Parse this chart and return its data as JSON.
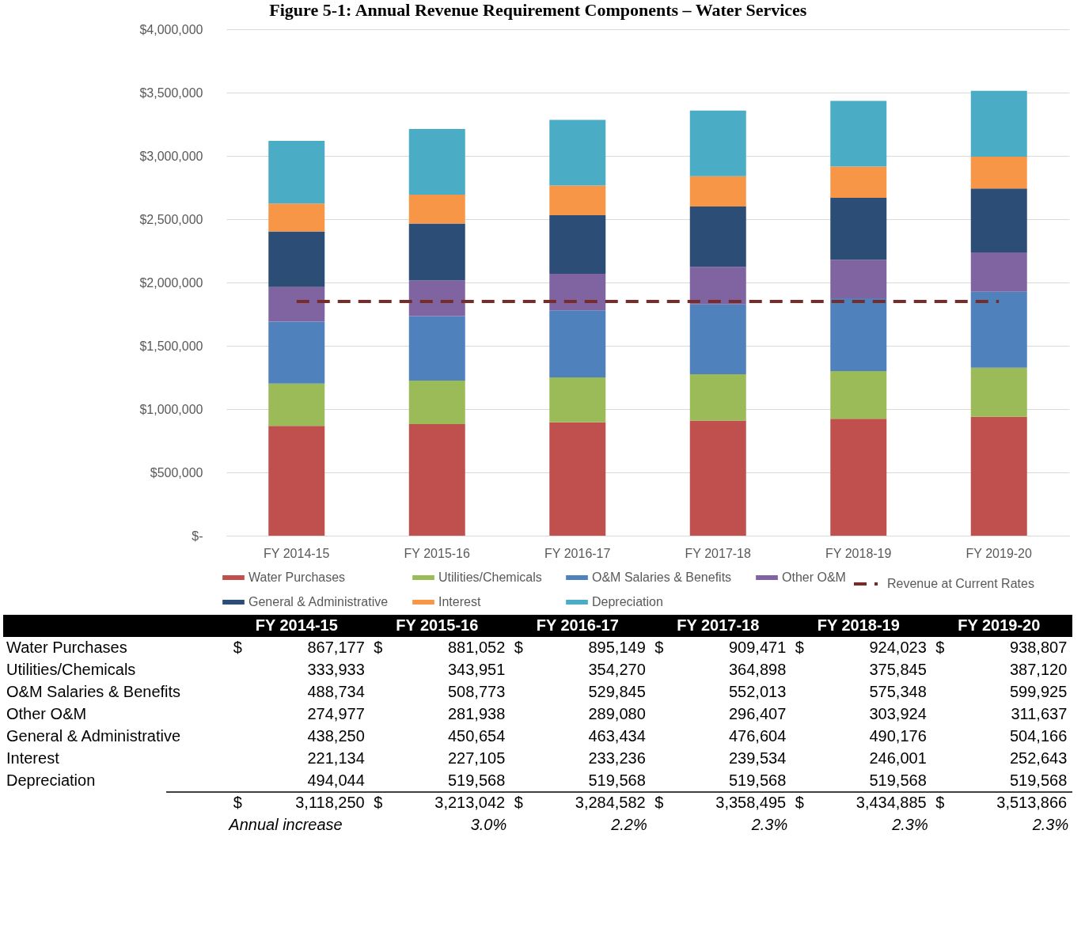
{
  "chart_data": {
    "type": "bar",
    "stacked": true,
    "title": "Figure 5-1: Annual Revenue Requirement Components – Water Services",
    "categories": [
      "FY 2014-15",
      "FY 2015-16",
      "FY 2016-17",
      "FY 2017-18",
      "FY 2018-19",
      "FY 2019-20"
    ],
    "series": [
      {
        "name": "Water Purchases",
        "color": "#c0504d",
        "values": [
          867177,
          881052,
          895149,
          909471,
          924023,
          938807
        ],
        "value_labels": [
          "$ 867,177",
          "$ 881,052",
          "$ 895,149",
          "$ 909,471",
          "$ 924,023",
          "$ 938,807"
        ]
      },
      {
        "name": "Utilities/Chemicals",
        "color": "#9bbb59",
        "values": [
          333933,
          343951,
          354270,
          364898,
          375845,
          387120
        ],
        "value_labels": [
          "333,933",
          "343,951",
          "354,270",
          "364,898",
          "375,845",
          "387,120"
        ]
      },
      {
        "name": "O&M Salaries & Benefits",
        "color": "#4f81bd",
        "values": [
          488734,
          508773,
          529845,
          552013,
          575348,
          599925
        ],
        "value_labels": [
          "488,734",
          "508,773",
          "529,845",
          "552,013",
          "575,348",
          "599,925"
        ]
      },
      {
        "name": "Other O&M",
        "color": "#8064a2",
        "values": [
          274977,
          281938,
          289080,
          296407,
          303924,
          311637
        ],
        "value_labels": [
          "274,977",
          "281,938",
          "289,080",
          "296,407",
          "303,924",
          "311,637"
        ]
      },
      {
        "name": "General & Administrative",
        "color": "#2c4d75",
        "values": [
          438250,
          450654,
          463434,
          476604,
          490176,
          504166
        ],
        "value_labels": [
          "438,250",
          "450,654",
          "463,434",
          "476,604",
          "490,176",
          "504,166"
        ]
      },
      {
        "name": "Interest",
        "color": "#f79646",
        "values": [
          221134,
          227105,
          233236,
          239534,
          246001,
          252643
        ],
        "value_labels": [
          "221,134",
          "227,105",
          "233,236",
          "239,534",
          "246,001",
          "252,643"
        ]
      },
      {
        "name": "Depreciation",
        "color": "#4bacc6",
        "values": [
          494044,
          519568,
          519568,
          519568,
          519568,
          519568
        ],
        "value_labels": [
          "494,044",
          "519,568",
          "519,568",
          "519,568",
          "519,568",
          "519,568"
        ]
      }
    ],
    "totals": [
      "$ 3,118,250",
      "$ 3,213,042",
      "$ 3,284,582",
      "$ 3,358,495",
      "$ 3,434,885",
      "$ 3,513,866"
    ],
    "annotations": [
      "Annual increase",
      "3.0%",
      "2.2%",
      "2.3%",
      "2.3%",
      "2.3%"
    ],
    "ref_lines": [
      {
        "axis": "y",
        "value": 1850000,
        "label": "Revenue at Current Rates",
        "color": "#772c2a",
        "line_style": "dashed"
      }
    ],
    "ylim": [
      0,
      4000000
    ],
    "yticks": [
      {
        "value": 0,
        "label": "$-"
      },
      {
        "value": 500000,
        "label": "$500,000"
      },
      {
        "value": 1000000,
        "label": "$1,000,000"
      },
      {
        "value": 1500000,
        "label": "$1,500,000"
      },
      {
        "value": 2000000,
        "label": "$2,000,000"
      },
      {
        "value": 2500000,
        "label": "$2,500,000"
      },
      {
        "value": 3000000,
        "label": "$3,000,000"
      },
      {
        "value": 3500000,
        "label": "$3,500,000"
      },
      {
        "value": 4000000,
        "label": "$4,000,000"
      }
    ],
    "grid": "y",
    "legend": "bottom"
  }
}
